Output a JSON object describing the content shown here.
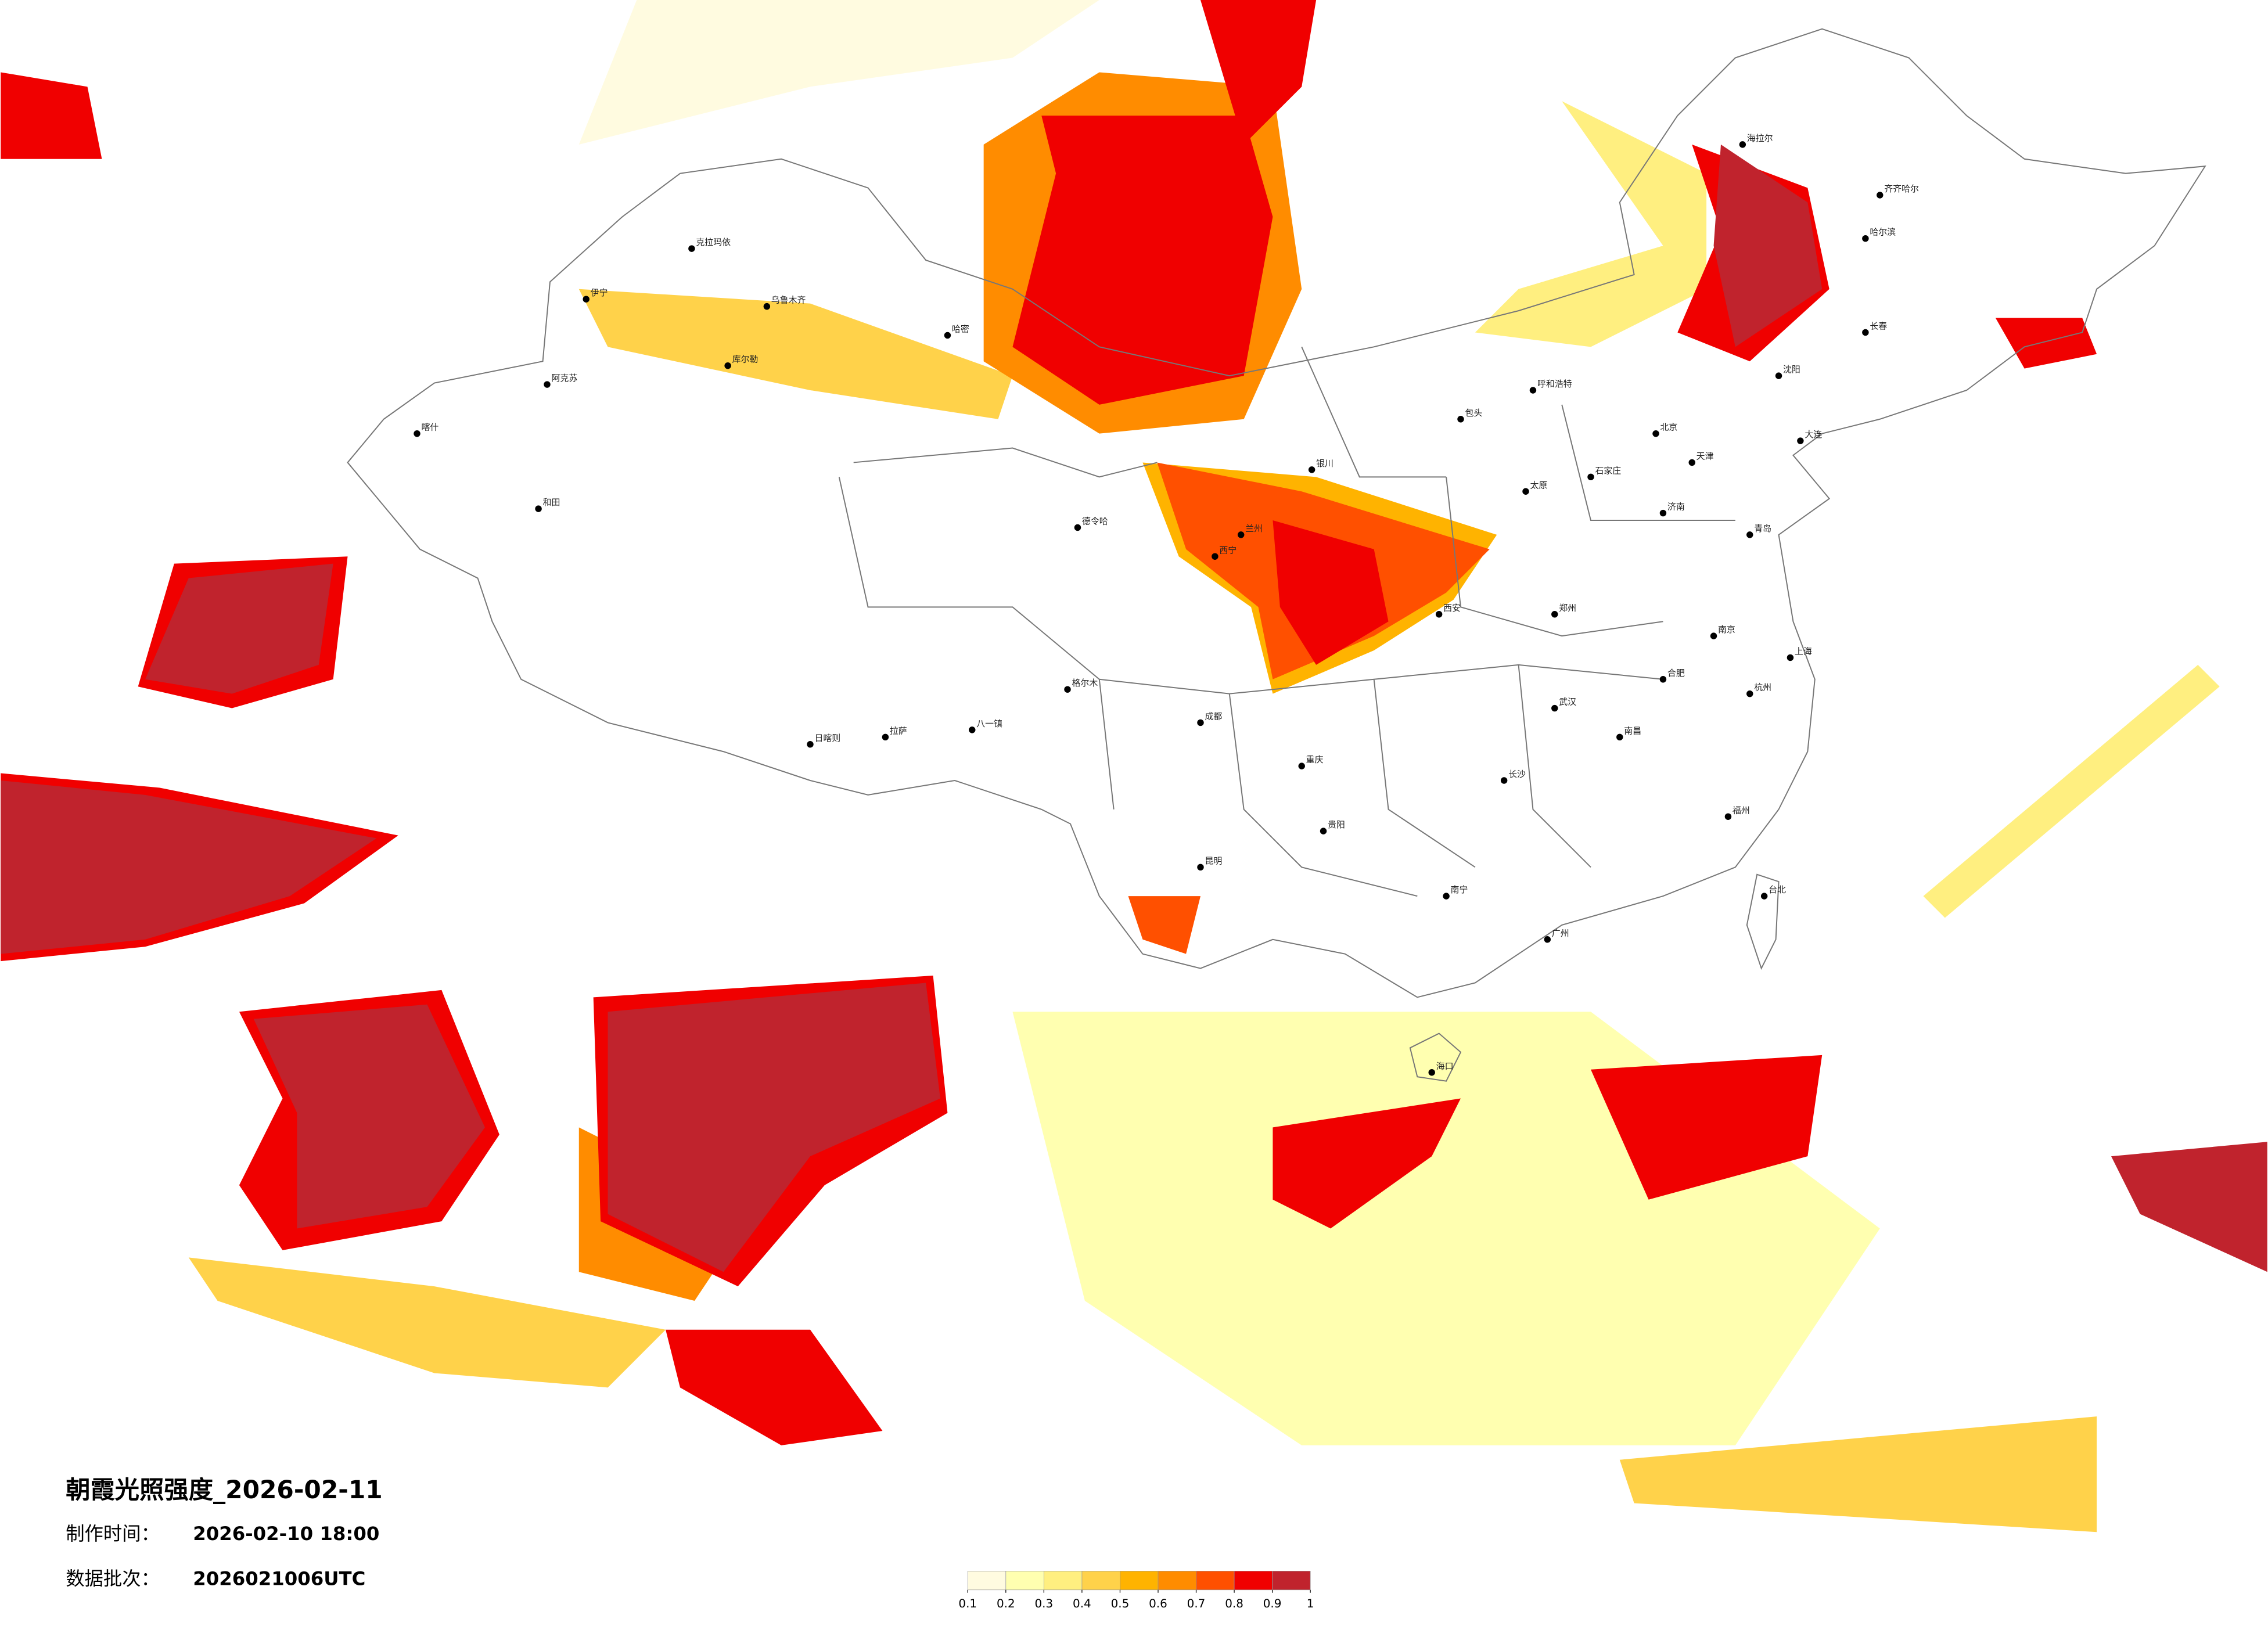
{
  "header": {
    "title": "朝霞光照强度_2026-02-11",
    "made_label": "制作时间：",
    "made_time": "2026-02-10 18:00",
    "batch_label": "数据批次：",
    "batch": "2026021006UTC"
  },
  "colorbar": {
    "ticks": [
      0.1,
      0.2,
      0.3,
      0.4,
      0.5,
      0.6,
      0.7,
      0.8,
      0.9,
      1
    ],
    "colors": [
      "#fffbe0",
      "#ffffb0",
      "#ffef80",
      "#ffd24a",
      "#ffb300",
      "#ff8c00",
      "#ff5000",
      "#f00000",
      "#c0232d"
    ]
  },
  "cities": [
    "克拉玛依",
    "乌鲁木齐",
    "伊宁",
    "库尔勒",
    "阿克苏",
    "喀什",
    "和田",
    "哈密",
    "格尔木",
    "德令哈",
    "拉萨",
    "日喀则",
    "八一镇",
    "西宁",
    "兰州",
    "银川",
    "呼和浩特",
    "包头",
    "北京",
    "天津",
    "石家庄",
    "太原",
    "郑州",
    "济南",
    "西安",
    "成都",
    "重庆",
    "武汉",
    "长沙",
    "南昌",
    "合肥",
    "南京",
    "上海",
    "杭州",
    "福州",
    "广州",
    "南宁",
    "贵阳",
    "昆明",
    "海口",
    "台北",
    "沈阳",
    "长春",
    "哈尔滨",
    "齐齐哈尔",
    "海拉尔",
    "大连",
    "青岛"
  ]
}
